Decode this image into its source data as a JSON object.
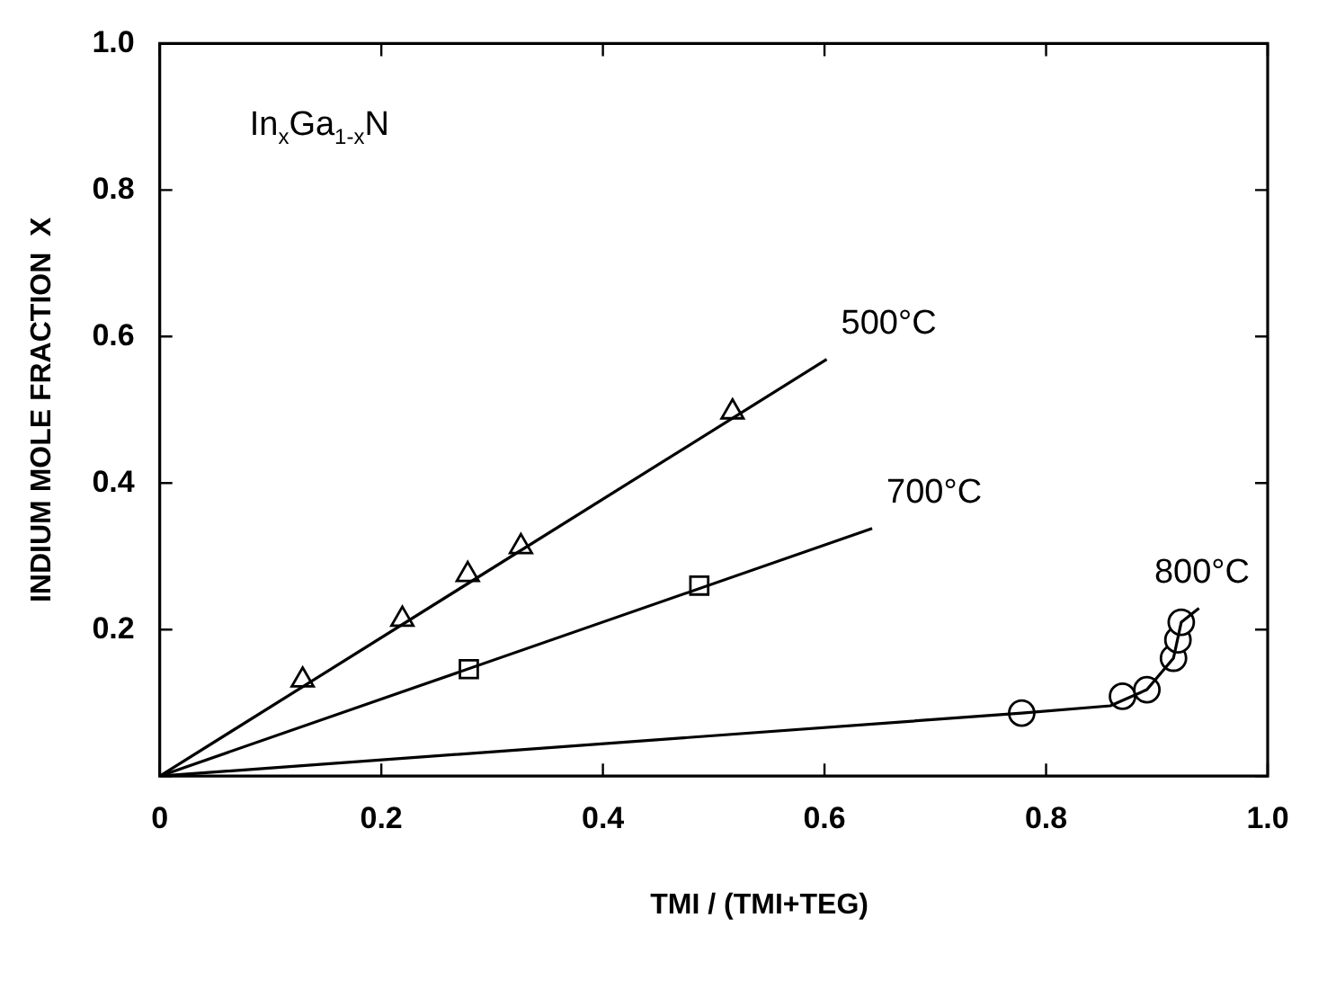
{
  "chart_data": {
    "type": "line",
    "xlabel": "TMI / (TMI+TEG)",
    "ylabel": "INDIUM MOLE FRACTION  X",
    "annotations": [
      "In$_{x}$Ga$_{1-x}$N"
    ],
    "xlim": [
      0,
      1.0
    ],
    "ylim": [
      0,
      1.0
    ],
    "xticks": [
      0,
      0.2,
      0.4,
      0.6,
      0.8,
      {
        "value": 1.0,
        "label": "1.0"
      }
    ],
    "yticks": [
      {
        "value": 0,
        "label": null
      },
      0.2,
      0.4,
      0.6,
      0.8,
      {
        "value": 1.0,
        "label": "1.0"
      }
    ],
    "grid": false,
    "legend": false,
    "series": [
      {
        "name": "500°C",
        "color": "#000000",
        "marker": "none",
        "x": [
          0,
          0.602
        ],
        "values": [
          0,
          0.569
        ]
      },
      {
        "type": "scatter",
        "color": "#000000",
        "marker": "triangle",
        "x": [
          0.129,
          0.219,
          0.278,
          0.326,
          0.517
        ],
        "values": [
          0.131,
          0.214,
          0.275,
          0.313,
          0.497
        ]
      },
      {
        "name": "700°C",
        "color": "#000000",
        "marker": "none",
        "x": [
          0,
          0.643
        ],
        "values": [
          0,
          0.338
        ]
      },
      {
        "type": "scatter",
        "color": "#000000",
        "marker": "square",
        "x": [
          0.279,
          0.487
        ],
        "values": [
          0.146,
          0.26
        ]
      },
      {
        "name": "800°C",
        "color": "#000000",
        "marker": "none",
        "x": [
          0,
          0.778,
          0.858,
          0.891,
          0.915,
          0.922,
          0.938
        ],
        "values": [
          0,
          0.086,
          0.096,
          0.118,
          0.161,
          0.21,
          0.229
        ]
      },
      {
        "type": "scatter",
        "color": "#000000",
        "marker": "circle",
        "x": [
          0.778,
          0.869,
          0.891,
          0.915,
          0.919,
          0.922
        ],
        "values": [
          0.086,
          0.109,
          0.118,
          0.161,
          0.186,
          0.21
        ]
      }
    ]
  }
}
